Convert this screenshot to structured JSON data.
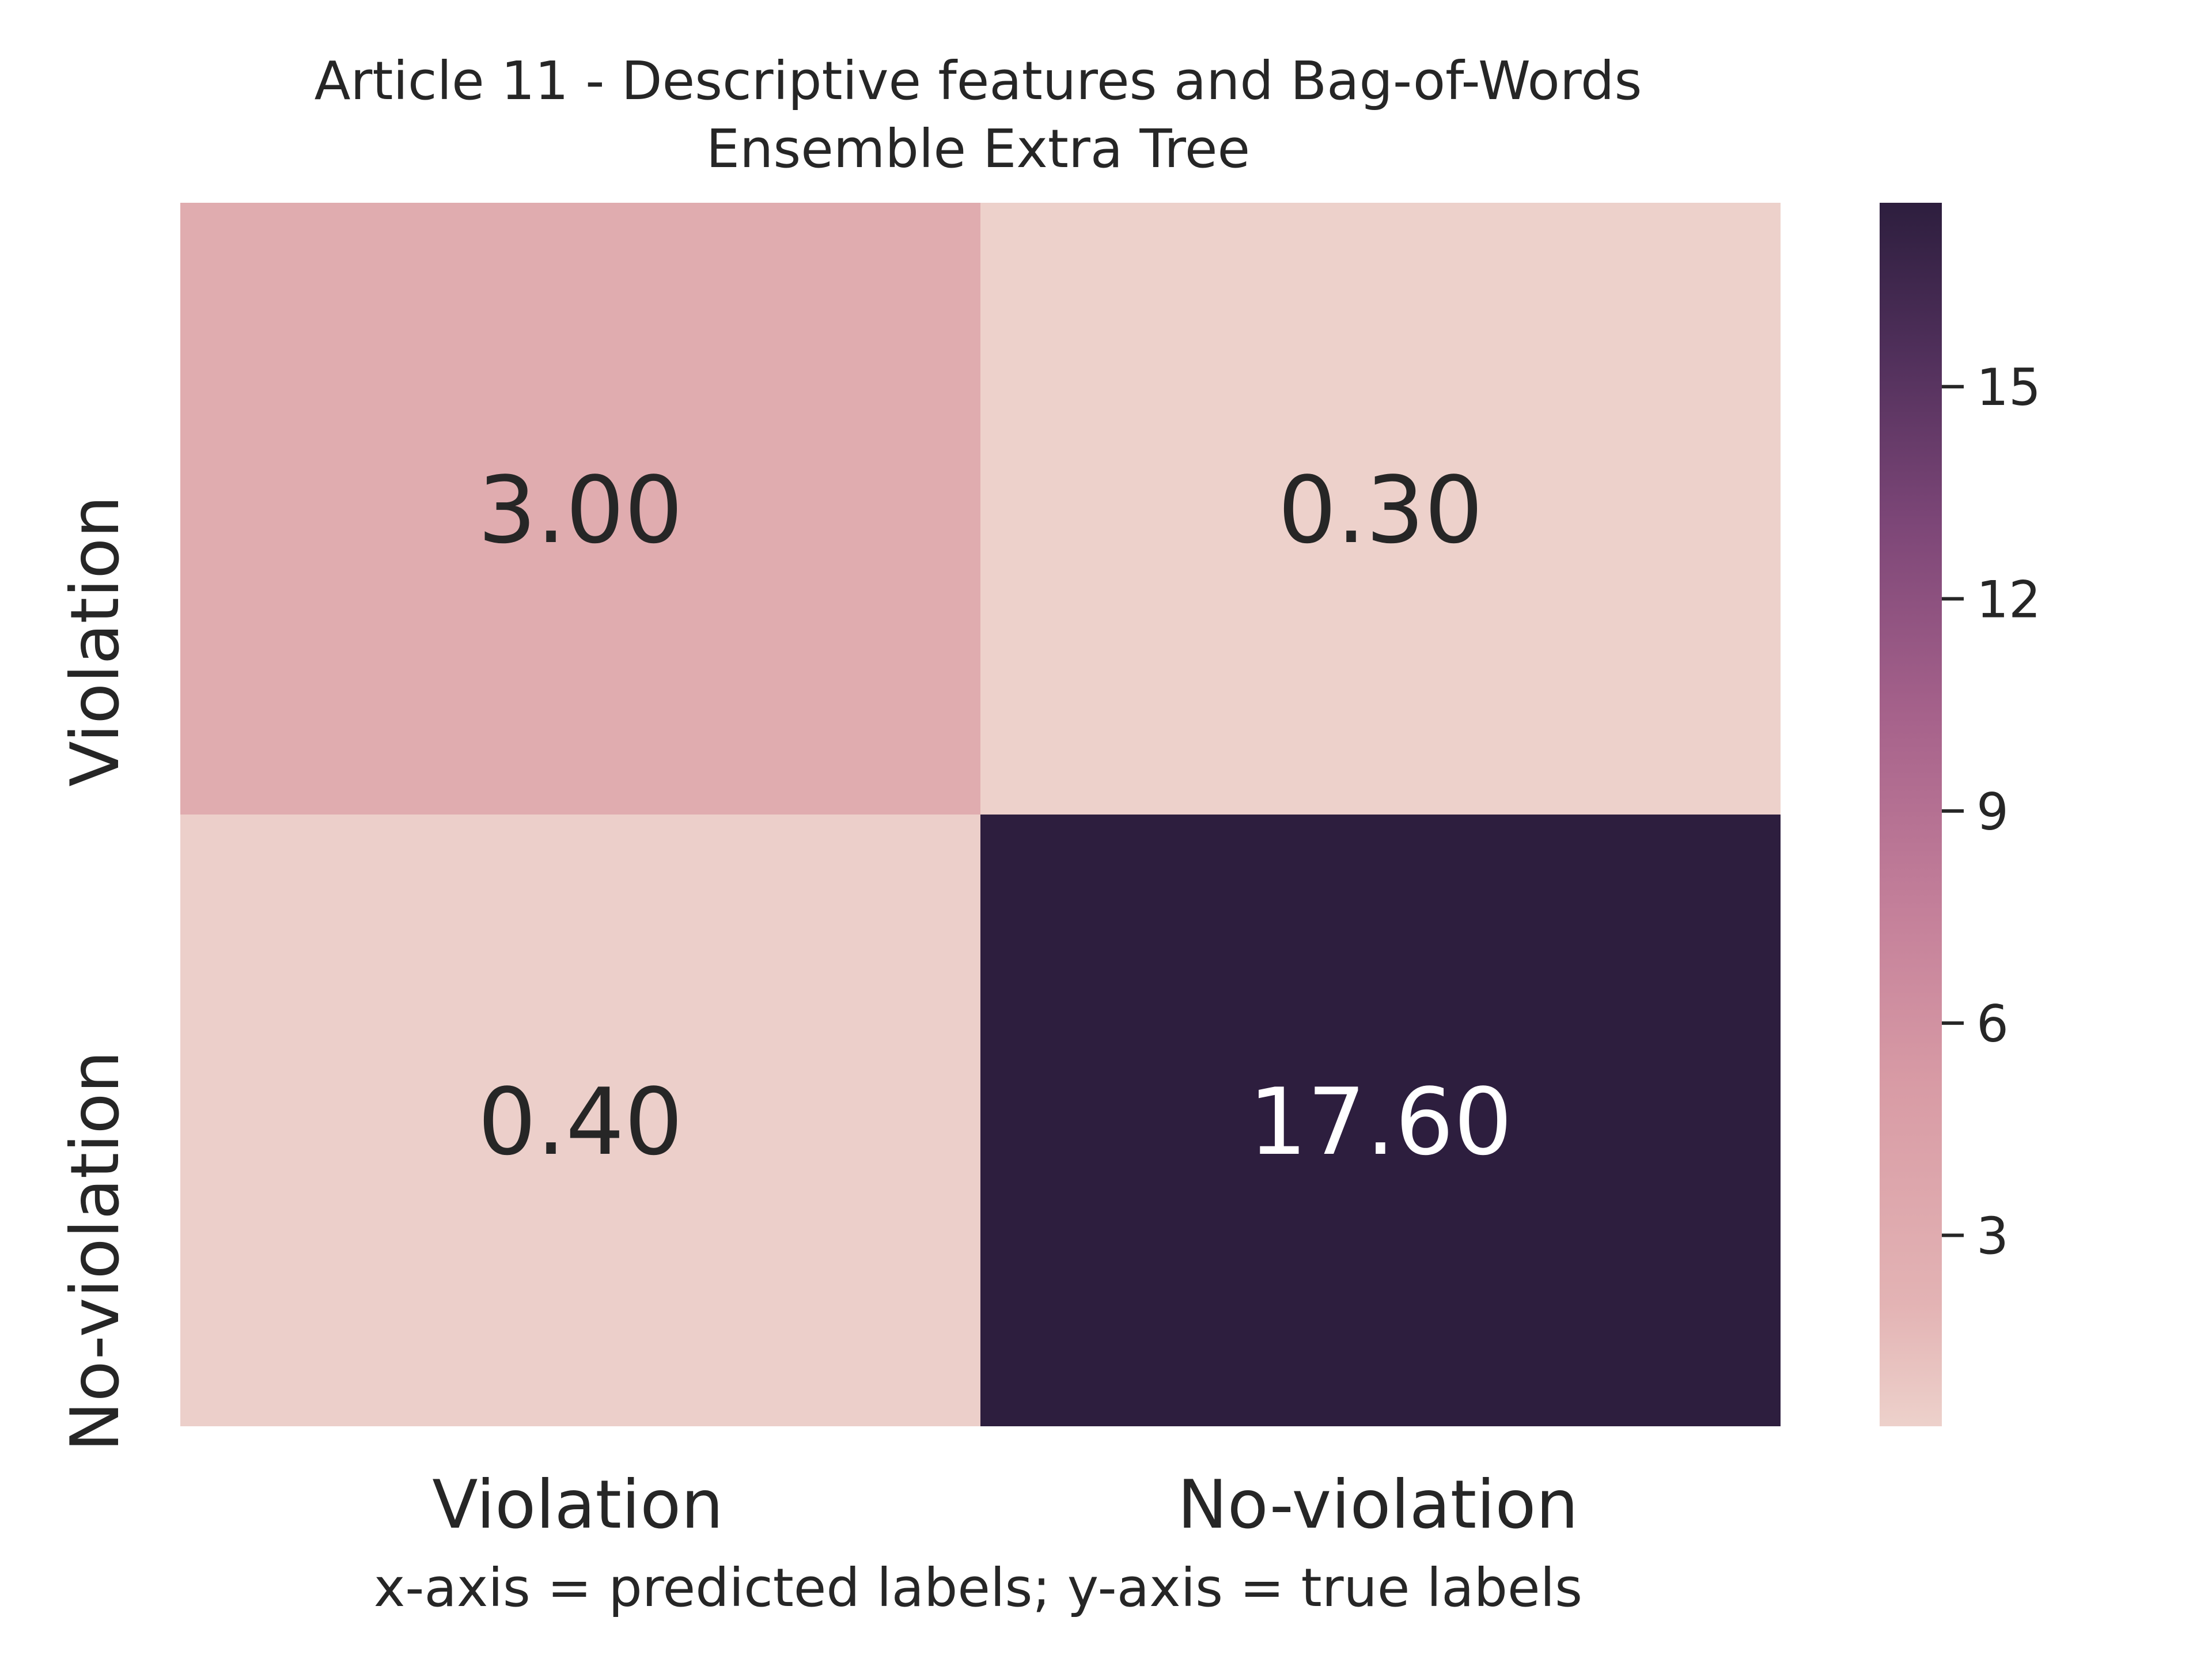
{
  "chart_data": {
    "type": "heatmap",
    "title": "Article 11 - Descriptive features and Bag-of-Words",
    "subtitle": "Ensemble Extra Tree",
    "xlabel": "x-axis = predicted labels; y-axis = true labels",
    "ylabel": "",
    "x_categories": [
      "Violation",
      "No-violation"
    ],
    "y_categories": [
      "Violation",
      "No-violation"
    ],
    "values": [
      [
        3.0,
        0.3
      ],
      [
        0.4,
        17.6
      ]
    ],
    "value_labels": [
      [
        "3.00",
        "0.30"
      ],
      [
        "0.40",
        "17.60"
      ]
    ],
    "colorbar": {
      "min": 0.3,
      "max": 17.6,
      "ticks": [
        3,
        6,
        9,
        12,
        15
      ],
      "tick_labels": [
        "3",
        "6",
        "9",
        "12",
        "15"
      ]
    },
    "colors": {
      "low": "#edd1cb",
      "high": "#2d1e3e",
      "annot_dark": "#262626",
      "annot_light": "#ffffff",
      "text": "#262626"
    },
    "grid": false
  }
}
